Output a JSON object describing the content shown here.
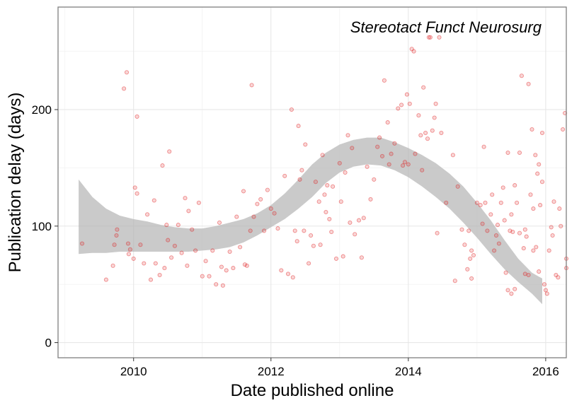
{
  "chart_data": {
    "type": "scatter",
    "annotation": "Stereotact Funct Neurosurg",
    "xlabel": "Date published online",
    "ylabel": "Publication delay (days)",
    "xlim": [
      2008.9,
      2016.3
    ],
    "ylim": [
      -13,
      288
    ],
    "x_ticks": [
      2010,
      2012,
      2014,
      2016
    ],
    "y_ticks": [
      0,
      100,
      200
    ],
    "grid": true,
    "point_color": "#e0191b",
    "band_color": "#b3b3b3",
    "points": [
      [
        2009.25,
        85
      ],
      [
        2009.6,
        54
      ],
      [
        2009.7,
        66
      ],
      [
        2009.72,
        84
      ],
      [
        2009.75,
        92
      ],
      [
        2009.76,
        97
      ],
      [
        2009.86,
        218
      ],
      [
        2009.9,
        232
      ],
      [
        2009.92,
        85
      ],
      [
        2009.93,
        76
      ],
      [
        2009.95,
        80
      ],
      [
        2010.0,
        72
      ],
      [
        2010.02,
        133
      ],
      [
        2010.05,
        194
      ],
      [
        2010.05,
        128
      ],
      [
        2010.1,
        84
      ],
      [
        2010.15,
        68
      ],
      [
        2010.2,
        110
      ],
      [
        2010.25,
        54
      ],
      [
        2010.3,
        122
      ],
      [
        2010.32,
        68
      ],
      [
        2010.38,
        58
      ],
      [
        2010.42,
        152
      ],
      [
        2010.45,
        64
      ],
      [
        2010.48,
        101
      ],
      [
        2010.5,
        88
      ],
      [
        2010.52,
        164
      ],
      [
        2010.55,
        73
      ],
      [
        2010.6,
        83
      ],
      [
        2010.65,
        101
      ],
      [
        2010.7,
        77
      ],
      [
        2010.75,
        124
      ],
      [
        2010.78,
        66
      ],
      [
        2010.8,
        113
      ],
      [
        2010.85,
        97
      ],
      [
        2010.9,
        79
      ],
      [
        2010.95,
        120
      ],
      [
        2011.0,
        57
      ],
      [
        2011.05,
        70
      ],
      [
        2011.1,
        57
      ],
      [
        2011.15,
        79
      ],
      [
        2011.2,
        50
      ],
      [
        2011.25,
        103
      ],
      [
        2011.28,
        65
      ],
      [
        2011.3,
        49
      ],
      [
        2011.35,
        62
      ],
      [
        2011.4,
        78
      ],
      [
        2011.45,
        64
      ],
      [
        2011.5,
        108
      ],
      [
        2011.55,
        82
      ],
      [
        2011.6,
        130
      ],
      [
        2011.62,
        67
      ],
      [
        2011.65,
        66
      ],
      [
        2011.7,
        96
      ],
      [
        2011.72,
        221
      ],
      [
        2011.75,
        108
      ],
      [
        2011.8,
        119
      ],
      [
        2011.85,
        123
      ],
      [
        2011.9,
        96
      ],
      [
        2011.95,
        131
      ],
      [
        2012.0,
        115
      ],
      [
        2012.05,
        111
      ],
      [
        2012.1,
        98
      ],
      [
        2012.15,
        62
      ],
      [
        2012.2,
        143
      ],
      [
        2012.25,
        59
      ],
      [
        2012.3,
        200
      ],
      [
        2012.32,
        56
      ],
      [
        2012.35,
        96
      ],
      [
        2012.38,
        87
      ],
      [
        2012.4,
        186
      ],
      [
        2012.42,
        140
      ],
      [
        2012.45,
        148
      ],
      [
        2012.48,
        96
      ],
      [
        2012.5,
        170
      ],
      [
        2012.55,
        68
      ],
      [
        2012.58,
        92
      ],
      [
        2012.62,
        83
      ],
      [
        2012.65,
        138
      ],
      [
        2012.7,
        121
      ],
      [
        2012.72,
        84
      ],
      [
        2012.75,
        161
      ],
      [
        2012.78,
        127
      ],
      [
        2012.8,
        112
      ],
      [
        2012.82,
        135
      ],
      [
        2012.85,
        106
      ],
      [
        2012.88,
        95
      ],
      [
        2012.9,
        134
      ],
      [
        2012.95,
        72
      ],
      [
        2013.0,
        154
      ],
      [
        2013.02,
        121
      ],
      [
        2013.05,
        74
      ],
      [
        2013.08,
        146
      ],
      [
        2013.12,
        178
      ],
      [
        2013.15,
        103
      ],
      [
        2013.18,
        167
      ],
      [
        2013.22,
        93
      ],
      [
        2013.28,
        105
      ],
      [
        2013.32,
        73
      ],
      [
        2013.35,
        107
      ],
      [
        2013.4,
        151
      ],
      [
        2013.45,
        123
      ],
      [
        2013.5,
        140
      ],
      [
        2013.55,
        168
      ],
      [
        2013.58,
        176
      ],
      [
        2013.62,
        160
      ],
      [
        2013.65,
        225
      ],
      [
        2013.7,
        189
      ],
      [
        2013.72,
        153
      ],
      [
        2013.75,
        162
      ],
      [
        2013.8,
        171
      ],
      [
        2013.85,
        201
      ],
      [
        2013.9,
        204
      ],
      [
        2013.92,
        152
      ],
      [
        2013.95,
        155
      ],
      [
        2013.98,
        213
      ],
      [
        2014.0,
        153
      ],
      [
        2014.02,
        205
      ],
      [
        2014.05,
        252
      ],
      [
        2014.08,
        250
      ],
      [
        2014.1,
        162
      ],
      [
        2014.15,
        195
      ],
      [
        2014.18,
        178
      ],
      [
        2014.2,
        148
      ],
      [
        2014.22,
        219
      ],
      [
        2014.25,
        180
      ],
      [
        2014.28,
        175
      ],
      [
        2014.3,
        262
      ],
      [
        2014.32,
        262
      ],
      [
        2014.35,
        182
      ],
      [
        2014.38,
        193
      ],
      [
        2014.4,
        205
      ],
      [
        2014.42,
        94
      ],
      [
        2014.45,
        262
      ],
      [
        2014.48,
        180
      ],
      [
        2014.55,
        120
      ],
      [
        2014.65,
        161
      ],
      [
        2014.68,
        53
      ],
      [
        2014.72,
        134
      ],
      [
        2014.78,
        97
      ],
      [
        2014.82,
        84
      ],
      [
        2014.86,
        63
      ],
      [
        2014.9,
        72
      ],
      [
        2014.92,
        79
      ],
      [
        2014.95,
        75
      ],
      [
        2015.0,
        120
      ],
      [
        2015.05,
        118
      ],
      [
        2015.08,
        102
      ],
      [
        2015.1,
        168
      ],
      [
        2015.12,
        120
      ],
      [
        2015.15,
        96
      ],
      [
        2015.2,
        110
      ],
      [
        2015.22,
        127
      ],
      [
        2015.25,
        79
      ],
      [
        2015.28,
        92
      ],
      [
        2015.3,
        101
      ],
      [
        2015.32,
        85
      ],
      [
        2015.35,
        120
      ],
      [
        2015.38,
        133
      ],
      [
        2015.4,
        105
      ],
      [
        2015.42,
        60
      ],
      [
        2015.45,
        163
      ],
      [
        2015.48,
        96
      ],
      [
        2015.5,
        110
      ],
      [
        2015.52,
        95
      ],
      [
        2015.55,
        135
      ],
      [
        2015.58,
        120
      ],
      [
        2015.62,
        163
      ],
      [
        2015.65,
        229
      ],
      [
        2015.68,
        81
      ],
      [
        2015.7,
        97
      ],
      [
        2015.72,
        91
      ],
      [
        2015.75,
        222
      ],
      [
        2015.78,
        127
      ],
      [
        2015.8,
        183
      ],
      [
        2015.82,
        115
      ],
      [
        2015.85,
        161
      ],
      [
        2015.88,
        145
      ],
      [
        2015.9,
        153
      ],
      [
        2015.92,
        118
      ],
      [
        2015.95,
        180
      ],
      [
        2015.98,
        50
      ],
      [
        2016.0,
        45
      ],
      [
        2016.02,
        42
      ],
      [
        2016.05,
        79
      ],
      [
        2016.08,
        99
      ],
      [
        2016.1,
        92
      ],
      [
        2016.12,
        121
      ],
      [
        2016.15,
        58
      ],
      [
        2016.18,
        56
      ],
      [
        2016.2,
        115
      ],
      [
        2016.22,
        100
      ],
      [
        2016.25,
        183
      ],
      [
        2016.28,
        197
      ],
      [
        2016.3,
        64
      ],
      [
        2016.3,
        72
      ],
      [
        2015.45,
        45
      ],
      [
        2015.5,
        42
      ],
      [
        2015.55,
        46
      ],
      [
        2015.62,
        94
      ],
      [
        2015.7,
        59
      ],
      [
        2015.75,
        58
      ],
      [
        2015.82,
        79
      ],
      [
        2015.86,
        82
      ],
      [
        2015.9,
        61
      ],
      [
        2015.95,
        138
      ],
      [
        2014.92,
        55
      ],
      [
        2014.88,
        96
      ]
    ],
    "band_upper": [
      [
        2009.2,
        140
      ],
      [
        2009.4,
        125
      ],
      [
        2009.6,
        115
      ],
      [
        2009.8,
        109
      ],
      [
        2010.0,
        106
      ],
      [
        2010.2,
        104
      ],
      [
        2010.4,
        101
      ],
      [
        2010.6,
        99
      ],
      [
        2010.8,
        98
      ],
      [
        2011.0,
        98
      ],
      [
        2011.2,
        100
      ],
      [
        2011.4,
        103
      ],
      [
        2011.6,
        106
      ],
      [
        2011.8,
        111
      ],
      [
        2012.0,
        118
      ],
      [
        2012.2,
        128
      ],
      [
        2012.4,
        140
      ],
      [
        2012.6,
        153
      ],
      [
        2012.8,
        163
      ],
      [
        2013.0,
        170
      ],
      [
        2013.2,
        174
      ],
      [
        2013.4,
        176
      ],
      [
        2013.6,
        176
      ],
      [
        2013.8,
        172
      ],
      [
        2014.0,
        167
      ],
      [
        2014.2,
        161
      ],
      [
        2014.4,
        154
      ],
      [
        2014.6,
        145
      ],
      [
        2014.8,
        134
      ],
      [
        2015.0,
        120
      ],
      [
        2015.2,
        105
      ],
      [
        2015.4,
        88
      ],
      [
        2015.6,
        72
      ],
      [
        2015.8,
        60
      ],
      [
        2015.95,
        55
      ]
    ],
    "band_lower": [
      [
        2009.2,
        76
      ],
      [
        2009.4,
        77
      ],
      [
        2009.6,
        77
      ],
      [
        2009.8,
        78
      ],
      [
        2010.0,
        78
      ],
      [
        2010.2,
        78
      ],
      [
        2010.4,
        78
      ],
      [
        2010.6,
        78
      ],
      [
        2010.8,
        78
      ],
      [
        2011.0,
        79
      ],
      [
        2011.2,
        80
      ],
      [
        2011.4,
        82
      ],
      [
        2011.6,
        86
      ],
      [
        2011.8,
        92
      ],
      [
        2012.0,
        99
      ],
      [
        2012.2,
        106
      ],
      [
        2012.4,
        115
      ],
      [
        2012.6,
        125
      ],
      [
        2012.8,
        137
      ],
      [
        2013.0,
        146
      ],
      [
        2013.2,
        151
      ],
      [
        2013.4,
        153
      ],
      [
        2013.6,
        152
      ],
      [
        2013.8,
        148
      ],
      [
        2014.0,
        142
      ],
      [
        2014.2,
        134
      ],
      [
        2014.4,
        125
      ],
      [
        2014.6,
        115
      ],
      [
        2014.8,
        103
      ],
      [
        2015.0,
        90
      ],
      [
        2015.2,
        76
      ],
      [
        2015.4,
        63
      ],
      [
        2015.6,
        52
      ],
      [
        2015.8,
        42
      ],
      [
        2015.95,
        33
      ]
    ]
  }
}
